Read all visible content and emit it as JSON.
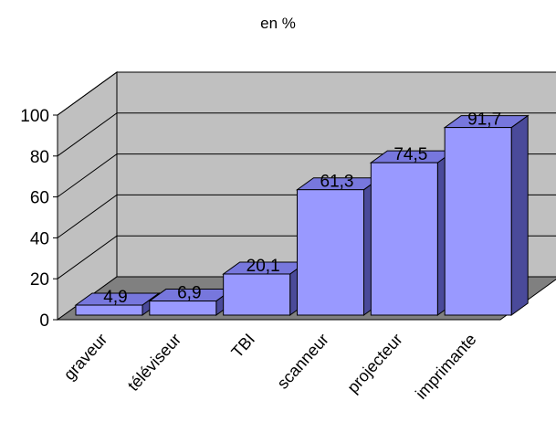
{
  "chart_data": {
    "type": "bar",
    "title": "en %",
    "categories": [
      "graveur",
      "téléviseur",
      "TBI",
      "scanneur",
      "projecteur",
      "imprimante"
    ],
    "values": [
      4.9,
      6.9,
      20.1,
      61.3,
      74.5,
      91.7
    ],
    "value_labels": [
      "4,9",
      "6,9",
      "20,1",
      "61,3",
      "74,5",
      "91,7"
    ],
    "y_ticks": [
      "0",
      "20",
      "40",
      "60",
      "80",
      "100"
    ],
    "ylim": [
      0,
      100
    ],
    "three_d": true,
    "grid": true,
    "legend": "none",
    "colors": {
      "bar_front": "#9999ff",
      "bar_top": "#7777dd",
      "bar_side": "#4a4a9a",
      "wall": "#c0c0c0",
      "floor": "#808080",
      "edge": "#000000"
    }
  }
}
